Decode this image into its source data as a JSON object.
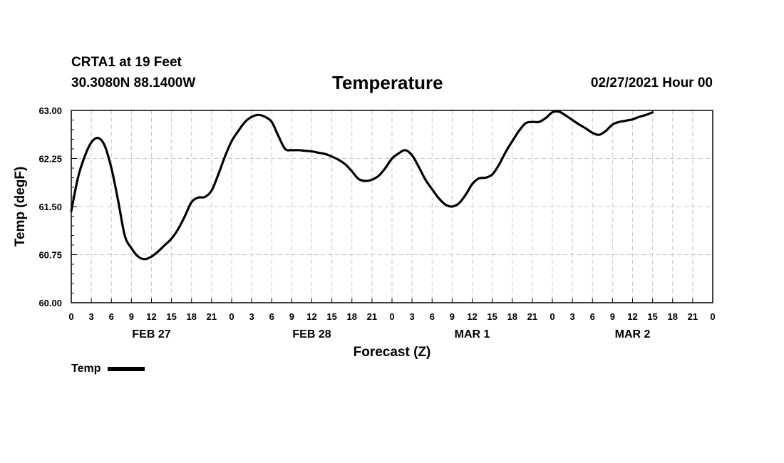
{
  "header": {
    "station": "CRTA1 at 19 Feet",
    "coords": "30.3080N 88.1400W",
    "datetime": "02/27/2021 Hour 00"
  },
  "chart_data": {
    "type": "line",
    "title": "Temperature",
    "xlabel": "Forecast (Z)",
    "ylabel": "Temp (degF)",
    "ylim": [
      60.0,
      63.0
    ],
    "yticks": [
      "60.00",
      "60.75",
      "61.50",
      "62.25",
      "63.00"
    ],
    "x_hour_labels": [
      "0",
      "3",
      "6",
      "9",
      "12",
      "15",
      "18",
      "21",
      "0",
      "3",
      "6",
      "9",
      "12",
      "15",
      "18",
      "21",
      "0",
      "3",
      "6",
      "9",
      "12",
      "15",
      "18",
      "21",
      "0",
      "3",
      "6",
      "9",
      "12",
      "15",
      "18",
      "21",
      "0"
    ],
    "day_labels": [
      {
        "label": "FEB 27",
        "hour": 12
      },
      {
        "label": "FEB 28",
        "hour": 36
      },
      {
        "label": "MAR 1",
        "hour": 60
      },
      {
        "label": "MAR 2",
        "hour": 84
      }
    ],
    "xlim_hours": [
      0,
      96
    ],
    "grid": true,
    "legend": "bottom-left",
    "series": [
      {
        "name": "Temp",
        "color": "#000000",
        "points": [
          [
            0,
            61.43
          ],
          [
            1,
            61.95
          ],
          [
            2,
            62.28
          ],
          [
            3,
            62.5
          ],
          [
            4,
            62.57
          ],
          [
            5,
            62.45
          ],
          [
            6,
            62.1
          ],
          [
            7,
            61.6
          ],
          [
            8,
            61.05
          ],
          [
            9,
            60.85
          ],
          [
            10,
            60.72
          ],
          [
            11,
            60.68
          ],
          [
            12,
            60.72
          ],
          [
            13,
            60.8
          ],
          [
            14,
            60.9
          ],
          [
            15,
            61.0
          ],
          [
            16,
            61.15
          ],
          [
            17,
            61.35
          ],
          [
            18,
            61.57
          ],
          [
            19,
            61.64
          ],
          [
            20,
            61.65
          ],
          [
            21,
            61.75
          ],
          [
            22,
            62.0
          ],
          [
            23,
            62.28
          ],
          [
            24,
            62.52
          ],
          [
            25,
            62.68
          ],
          [
            26,
            62.82
          ],
          [
            27,
            62.9
          ],
          [
            28,
            62.93
          ],
          [
            29,
            62.9
          ],
          [
            30,
            62.82
          ],
          [
            31,
            62.6
          ],
          [
            32,
            62.4
          ],
          [
            33,
            62.38
          ],
          [
            34,
            62.38
          ],
          [
            35,
            62.37
          ],
          [
            36,
            62.36
          ],
          [
            37,
            62.34
          ],
          [
            38,
            62.32
          ],
          [
            39,
            62.28
          ],
          [
            40,
            62.23
          ],
          [
            41,
            62.16
          ],
          [
            42,
            62.05
          ],
          [
            43,
            61.93
          ],
          [
            44,
            61.9
          ],
          [
            45,
            61.92
          ],
          [
            46,
            61.98
          ],
          [
            47,
            62.1
          ],
          [
            48,
            62.25
          ],
          [
            49,
            62.33
          ],
          [
            50,
            62.38
          ],
          [
            51,
            62.3
          ],
          [
            52,
            62.12
          ],
          [
            53,
            61.92
          ],
          [
            54,
            61.77
          ],
          [
            55,
            61.63
          ],
          [
            56,
            61.53
          ],
          [
            57,
            61.5
          ],
          [
            58,
            61.55
          ],
          [
            59,
            61.68
          ],
          [
            60,
            61.85
          ],
          [
            61,
            61.94
          ],
          [
            62,
            61.95
          ],
          [
            63,
            62.0
          ],
          [
            64,
            62.15
          ],
          [
            65,
            62.35
          ],
          [
            66,
            62.52
          ],
          [
            67,
            62.68
          ],
          [
            68,
            62.8
          ],
          [
            69,
            62.82
          ],
          [
            70,
            62.82
          ],
          [
            71,
            62.88
          ],
          [
            72,
            62.97
          ],
          [
            73,
            62.98
          ],
          [
            74,
            62.92
          ],
          [
            75,
            62.85
          ],
          [
            76,
            62.78
          ],
          [
            77,
            62.72
          ],
          [
            78,
            62.65
          ],
          [
            79,
            62.62
          ],
          [
            80,
            62.68
          ],
          [
            81,
            62.78
          ],
          [
            82,
            62.82
          ],
          [
            83,
            62.84
          ],
          [
            84,
            62.86
          ],
          [
            85,
            62.9
          ],
          [
            86,
            62.93
          ],
          [
            87,
            62.97
          ]
        ]
      }
    ]
  }
}
